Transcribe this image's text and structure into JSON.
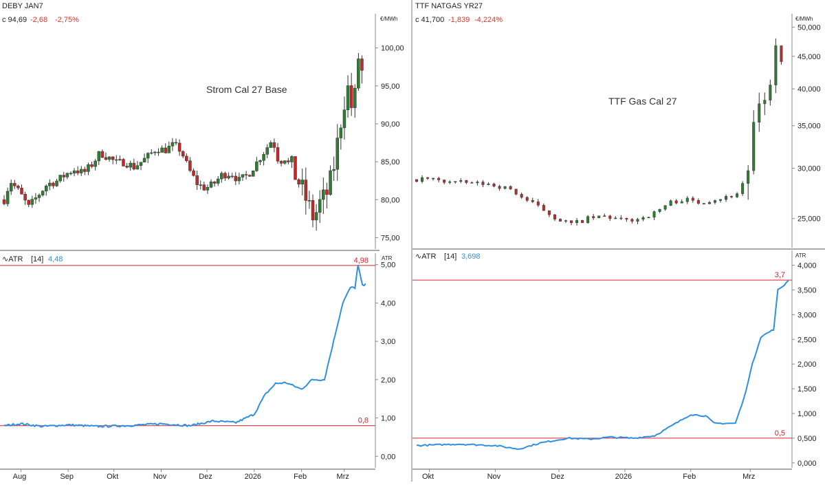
{
  "colors": {
    "up": "#2e7d32",
    "down": "#c62828",
    "wick": "#333333",
    "atr": "#2f8fe0",
    "level": "#d0242a",
    "axis": "#888888"
  },
  "chart_data": [
    {
      "type": "candlestick",
      "symbol": "DEBY JAN7",
      "quote": {
        "close_label": "c 94,69",
        "change": "-2,68",
        "change_pct": "-2,75%"
      },
      "annotation": "Strom Cal 27 Base",
      "y_unit": "€/MWh",
      "ylim": [
        73.5,
        104.5
      ],
      "yticks": [
        "75,00",
        "80,00",
        "85,00",
        "90,00",
        "95,00",
        "100,00"
      ],
      "xticks": [
        "Aug",
        "Sep",
        "Okt",
        "Nov",
        "Dez",
        "2026",
        "Feb",
        "Mrz"
      ],
      "x_range": [
        "2025-07-21",
        "2026-03-16"
      ],
      "close_series": [
        {
          "date": "2025-07-21",
          "close": 80.0
        },
        {
          "date": "2025-07-25",
          "close": 82.5
        },
        {
          "date": "2025-07-31",
          "close": 81.0
        },
        {
          "date": "2025-08-06",
          "close": 79.0
        },
        {
          "date": "2025-08-12",
          "close": 80.5
        },
        {
          "date": "2025-08-18",
          "close": 82.0
        },
        {
          "date": "2025-08-25",
          "close": 82.5
        },
        {
          "date": "2025-08-30",
          "close": 83.3
        },
        {
          "date": "2025-09-05",
          "close": 84.0
        },
        {
          "date": "2025-09-11",
          "close": 83.5
        },
        {
          "date": "2025-09-16",
          "close": 84.5
        },
        {
          "date": "2025-09-22",
          "close": 86.2
        },
        {
          "date": "2025-09-28",
          "close": 85.5
        },
        {
          "date": "2025-10-03",
          "close": 84.8
        },
        {
          "date": "2025-10-08",
          "close": 85.0
        },
        {
          "date": "2025-10-14",
          "close": 84.3
        },
        {
          "date": "2025-10-19",
          "close": 85.0
        },
        {
          "date": "2025-10-24",
          "close": 85.8
        },
        {
          "date": "2025-10-29",
          "close": 86.8
        },
        {
          "date": "2025-11-03",
          "close": 86.5
        },
        {
          "date": "2025-11-09",
          "close": 87.2
        },
        {
          "date": "2025-11-14",
          "close": 86.5
        },
        {
          "date": "2025-11-19",
          "close": 84.0
        },
        {
          "date": "2025-11-25",
          "close": 82.0
        },
        {
          "date": "2025-11-30",
          "close": 81.5
        },
        {
          "date": "2025-12-05",
          "close": 82.0
        },
        {
          "date": "2025-12-11",
          "close": 83.3
        },
        {
          "date": "2025-12-17",
          "close": 83.5
        },
        {
          "date": "2025-12-22",
          "close": 82.5
        },
        {
          "date": "2025-12-28",
          "close": 83.3
        },
        {
          "date": "2026-01-03",
          "close": 85.0
        },
        {
          "date": "2026-01-08",
          "close": 86.5
        },
        {
          "date": "2026-01-13",
          "close": 88.0
        },
        {
          "date": "2026-01-17",
          "close": 85.0
        },
        {
          "date": "2026-01-21",
          "close": 85.5
        },
        {
          "date": "2026-01-26",
          "close": 84.0
        },
        {
          "date": "2026-01-31",
          "close": 82.0
        },
        {
          "date": "2026-02-04",
          "close": 80.0
        },
        {
          "date": "2026-02-09",
          "close": 77.5
        },
        {
          "date": "2026-02-13",
          "close": 79.5
        },
        {
          "date": "2026-02-17",
          "close": 80.5
        },
        {
          "date": "2026-02-21",
          "close": 83.0
        },
        {
          "date": "2026-02-25",
          "close": 88.0
        },
        {
          "date": "2026-02-28",
          "close": 92.0
        },
        {
          "date": "2026-03-03",
          "close": 95.0
        },
        {
          "date": "2026-03-06",
          "close": 92.0
        },
        {
          "date": "2026-03-08",
          "close": 93.5
        },
        {
          "date": "2026-03-10",
          "close": 99.0
        },
        {
          "date": "2026-03-12",
          "close": 97.5
        },
        {
          "date": "2026-03-14",
          "close": 95.0
        }
      ],
      "indicator": {
        "label": "ATR",
        "period_label": "[14]",
        "value_label": "4,48",
        "y_unit": "ATR",
        "ylim": [
          -0.3,
          5.3
        ],
        "yticks": [
          "0,00",
          "1,00",
          "2,00",
          "3,00",
          "4,00",
          "5,00"
        ],
        "levels": [
          {
            "value": 4.98,
            "label": "4,98"
          },
          {
            "value": 0.8,
            "label": "0,8"
          }
        ],
        "series": [
          {
            "date": "2025-07-21",
            "value": 0.8
          },
          {
            "date": "2025-08-01",
            "value": 0.85
          },
          {
            "date": "2025-08-15",
            "value": 0.78
          },
          {
            "date": "2025-09-01",
            "value": 0.82
          },
          {
            "date": "2025-09-20",
            "value": 0.78
          },
          {
            "date": "2025-10-10",
            "value": 0.8
          },
          {
            "date": "2025-11-01",
            "value": 0.85
          },
          {
            "date": "2025-11-20",
            "value": 0.8
          },
          {
            "date": "2025-12-05",
            "value": 0.92
          },
          {
            "date": "2025-12-20",
            "value": 0.88
          },
          {
            "date": "2026-01-01",
            "value": 1.1
          },
          {
            "date": "2026-01-08",
            "value": 1.6
          },
          {
            "date": "2026-01-15",
            "value": 1.9
          },
          {
            "date": "2026-01-22",
            "value": 1.92
          },
          {
            "date": "2026-02-01",
            "value": 1.75
          },
          {
            "date": "2026-02-08",
            "value": 2.0
          },
          {
            "date": "2026-02-16",
            "value": 2.0
          },
          {
            "date": "2026-02-22",
            "value": 3.0
          },
          {
            "date": "2026-02-28",
            "value": 4.0
          },
          {
            "date": "2026-03-05",
            "value": 4.4
          },
          {
            "date": "2026-03-08",
            "value": 4.4
          },
          {
            "date": "2026-03-10",
            "value": 4.98
          },
          {
            "date": "2026-03-13",
            "value": 4.45
          },
          {
            "date": "2026-03-15",
            "value": 4.48
          }
        ]
      }
    },
    {
      "type": "candlestick",
      "symbol": "TTF NATGAS YR27",
      "quote": {
        "close_label": "c 41,700",
        "change": "-1,839",
        "change_pct": "-4,224%"
      },
      "annotation": "TTF Gas Cal 27",
      "y_unit": "€/MWh",
      "y_scale": "log",
      "ylim": [
        22.5,
        52.5
      ],
      "yticks": [
        {
          "value": 25,
          "label": "25,000"
        },
        {
          "value": 30,
          "label": "30,000"
        },
        {
          "value": 35,
          "label": "35,000"
        },
        {
          "value": 40,
          "label": "40,000"
        },
        {
          "value": 45,
          "label": "45,000"
        },
        {
          "value": 50,
          "label": "50,000"
        }
      ],
      "xticks": [
        "Okt",
        "Nov",
        "Dez",
        "2026",
        "Feb",
        "Mrz"
      ],
      "x_range": [
        "2025-09-25",
        "2026-03-20"
      ],
      "close_series": [
        {
          "date": "2025-09-25",
          "close": 28.8
        },
        {
          "date": "2025-10-01",
          "close": 28.9
        },
        {
          "date": "2025-10-07",
          "close": 28.6
        },
        {
          "date": "2025-10-15",
          "close": 28.5
        },
        {
          "date": "2025-10-22",
          "close": 28.4
        },
        {
          "date": "2025-10-30",
          "close": 28.3
        },
        {
          "date": "2025-11-08",
          "close": 27.8
        },
        {
          "date": "2025-11-15",
          "close": 26.8
        },
        {
          "date": "2025-11-22",
          "close": 26.0
        },
        {
          "date": "2025-11-30",
          "close": 25.0
        },
        {
          "date": "2025-12-07",
          "close": 24.5
        },
        {
          "date": "2025-12-15",
          "close": 25.0
        },
        {
          "date": "2025-12-23",
          "close": 25.2
        },
        {
          "date": "2025-12-31",
          "close": 24.8
        },
        {
          "date": "2026-01-08",
          "close": 25.0
        },
        {
          "date": "2026-01-15",
          "close": 25.5
        },
        {
          "date": "2026-01-22",
          "close": 26.5
        },
        {
          "date": "2026-01-29",
          "close": 26.8
        },
        {
          "date": "2026-02-05",
          "close": 26.5
        },
        {
          "date": "2026-02-12",
          "close": 26.8
        },
        {
          "date": "2026-02-18",
          "close": 27.0
        },
        {
          "date": "2026-02-24",
          "close": 27.5
        },
        {
          "date": "2026-02-28",
          "close": 30.0
        },
        {
          "date": "2026-03-03",
          "close": 35.5
        },
        {
          "date": "2026-03-06",
          "close": 37.0
        },
        {
          "date": "2026-03-09",
          "close": 39.0
        },
        {
          "date": "2026-03-13",
          "close": 46.0
        },
        {
          "date": "2026-03-16",
          "close": 43.5
        },
        {
          "date": "2026-03-18",
          "close": 41.7
        }
      ],
      "indicator": {
        "label": "ATR",
        "period_label": "[14]",
        "value_label": "3,698",
        "y_unit": "ATR",
        "ylim": [
          -0.1,
          4.3
        ],
        "yticks": [
          "0,000",
          "0,500",
          "1,000",
          "1,500",
          "2,000",
          "2,500",
          "3,000",
          "3,500",
          "4,000"
        ],
        "levels": [
          {
            "value": 3.7,
            "label": "3,7"
          },
          {
            "value": 0.5,
            "label": "0,5"
          }
        ],
        "series": [
          {
            "date": "2025-09-25",
            "value": 0.35
          },
          {
            "date": "2025-10-15",
            "value": 0.38
          },
          {
            "date": "2025-11-01",
            "value": 0.35
          },
          {
            "date": "2025-11-12",
            "value": 0.28
          },
          {
            "date": "2025-11-22",
            "value": 0.4
          },
          {
            "date": "2025-12-05",
            "value": 0.5
          },
          {
            "date": "2025-12-15",
            "value": 0.48
          },
          {
            "date": "2025-12-25",
            "value": 0.52
          },
          {
            "date": "2026-01-05",
            "value": 0.5
          },
          {
            "date": "2026-01-15",
            "value": 0.55
          },
          {
            "date": "2026-01-25",
            "value": 0.8
          },
          {
            "date": "2026-02-01",
            "value": 0.98
          },
          {
            "date": "2026-02-08",
            "value": 0.95
          },
          {
            "date": "2026-02-12",
            "value": 0.8
          },
          {
            "date": "2026-02-22",
            "value": 0.8
          },
          {
            "date": "2026-02-26",
            "value": 1.3
          },
          {
            "date": "2026-03-02",
            "value": 2.0
          },
          {
            "date": "2026-03-06",
            "value": 2.55
          },
          {
            "date": "2026-03-12",
            "value": 2.7
          },
          {
            "date": "2026-03-14",
            "value": 3.5
          },
          {
            "date": "2026-03-17",
            "value": 3.6
          },
          {
            "date": "2026-03-19",
            "value": 3.7
          }
        ]
      }
    }
  ]
}
